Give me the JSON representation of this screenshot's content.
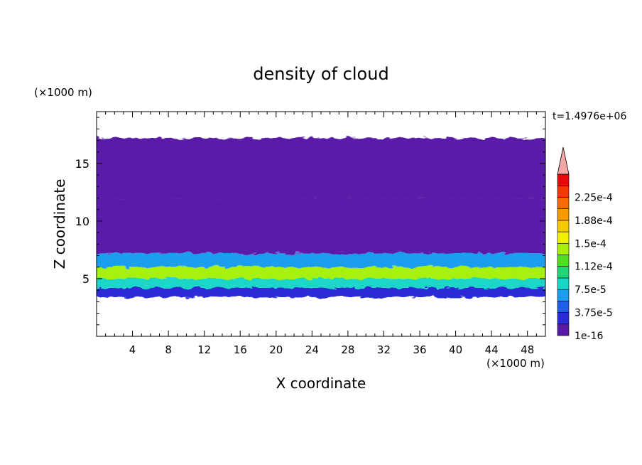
{
  "chart_data": {
    "type": "heatmap",
    "title": "density of cloud",
    "xlabel": "X coordinate",
    "ylabel": "Z coordinate",
    "x_unit": "(×1000 m)",
    "y_unit": "(×1000 m)",
    "time_label": "t=1.4976e+06",
    "xlim": [
      0,
      50
    ],
    "ylim": [
      0,
      19.5
    ],
    "x_ticks": [
      4,
      8,
      12,
      16,
      20,
      24,
      28,
      32,
      36,
      40,
      44,
      48
    ],
    "y_ticks": [
      5,
      10,
      15
    ],
    "colorbar": {
      "levels": [
        "1e-16",
        "3.75e-5",
        "7.5e-5",
        "1.12e-4",
        "1.5e-4",
        "1.88e-4",
        "2.25e-4"
      ],
      "colors": [
        "#5a1aa8",
        "#2b2bd6",
        "#1f5ee8",
        "#1a9ef0",
        "#1ad6c8",
        "#22d47a",
        "#4ee01e",
        "#a8f00c",
        "#f0f000",
        "#f6c800",
        "#f89a00",
        "#f66a00",
        "#f03a00",
        "#e80a0a"
      ],
      "extend_color": "#f4a7a7",
      "max": 0.00025
    },
    "cloud_layers": [
      {
        "z_bottom": 3.4,
        "z_top": 4.2,
        "value": 3e-05
      },
      {
        "z_bottom": 4.2,
        "z_top": 5.0,
        "value": 8e-05
      },
      {
        "z_bottom": 5.0,
        "z_top": 6.0,
        "value": 0.00013
      },
      {
        "z_bottom": 6.0,
        "z_top": 7.2,
        "value": 6e-05
      },
      {
        "z_bottom": 7.2,
        "z_top": 12.0,
        "value": 1e-05
      },
      {
        "z_bottom": 12.0,
        "z_top": 17.2,
        "value": 1e-06
      }
    ]
  }
}
